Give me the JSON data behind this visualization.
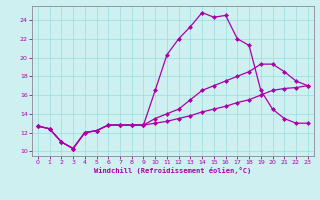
{
  "xlabel": "Windchill (Refroidissement éolien,°C)",
  "bg_color": "#cef0f0",
  "line_color": "#aa00aa",
  "grid_color": "#99dddd",
  "xlim": [
    -0.5,
    23.5
  ],
  "ylim": [
    9.5,
    25.5
  ],
  "xticks": [
    0,
    1,
    2,
    3,
    4,
    5,
    6,
    7,
    8,
    9,
    10,
    11,
    12,
    13,
    14,
    15,
    16,
    17,
    18,
    19,
    20,
    21,
    22,
    23
  ],
  "yticks": [
    10,
    12,
    14,
    16,
    18,
    20,
    22,
    24
  ],
  "line1_x": [
    0,
    1,
    2,
    3,
    4,
    5,
    6,
    7,
    8,
    9,
    10,
    11,
    12,
    13,
    14,
    15,
    16,
    17,
    18,
    19,
    20,
    21,
    22,
    23
  ],
  "line1_y": [
    12.7,
    12.4,
    11.0,
    10.3,
    12.0,
    12.2,
    12.8,
    12.8,
    12.8,
    12.8,
    16.5,
    20.3,
    22.0,
    23.3,
    24.8,
    24.3,
    24.5,
    22.0,
    21.3,
    16.5,
    14.5,
    13.5,
    13.0,
    13.0
  ],
  "line2_x": [
    0,
    1,
    2,
    3,
    4,
    5,
    6,
    7,
    8,
    9,
    10,
    11,
    12,
    13,
    14,
    15,
    16,
    17,
    18,
    19,
    20,
    21,
    22,
    23
  ],
  "line2_y": [
    12.7,
    12.4,
    11.0,
    10.3,
    12.0,
    12.2,
    12.8,
    12.8,
    12.8,
    12.8,
    13.5,
    14.0,
    14.5,
    15.5,
    16.5,
    17.0,
    17.5,
    18.0,
    18.5,
    19.3,
    19.3,
    18.5,
    17.5,
    17.0
  ],
  "line3_x": [
    0,
    1,
    2,
    3,
    4,
    5,
    6,
    7,
    8,
    9,
    10,
    11,
    12,
    13,
    14,
    15,
    16,
    17,
    18,
    19,
    20,
    21,
    22,
    23
  ],
  "line3_y": [
    12.7,
    12.4,
    11.0,
    10.3,
    12.0,
    12.2,
    12.8,
    12.8,
    12.8,
    12.8,
    13.0,
    13.2,
    13.5,
    13.8,
    14.2,
    14.5,
    14.8,
    15.2,
    15.5,
    16.0,
    16.5,
    16.7,
    16.8,
    17.0
  ]
}
